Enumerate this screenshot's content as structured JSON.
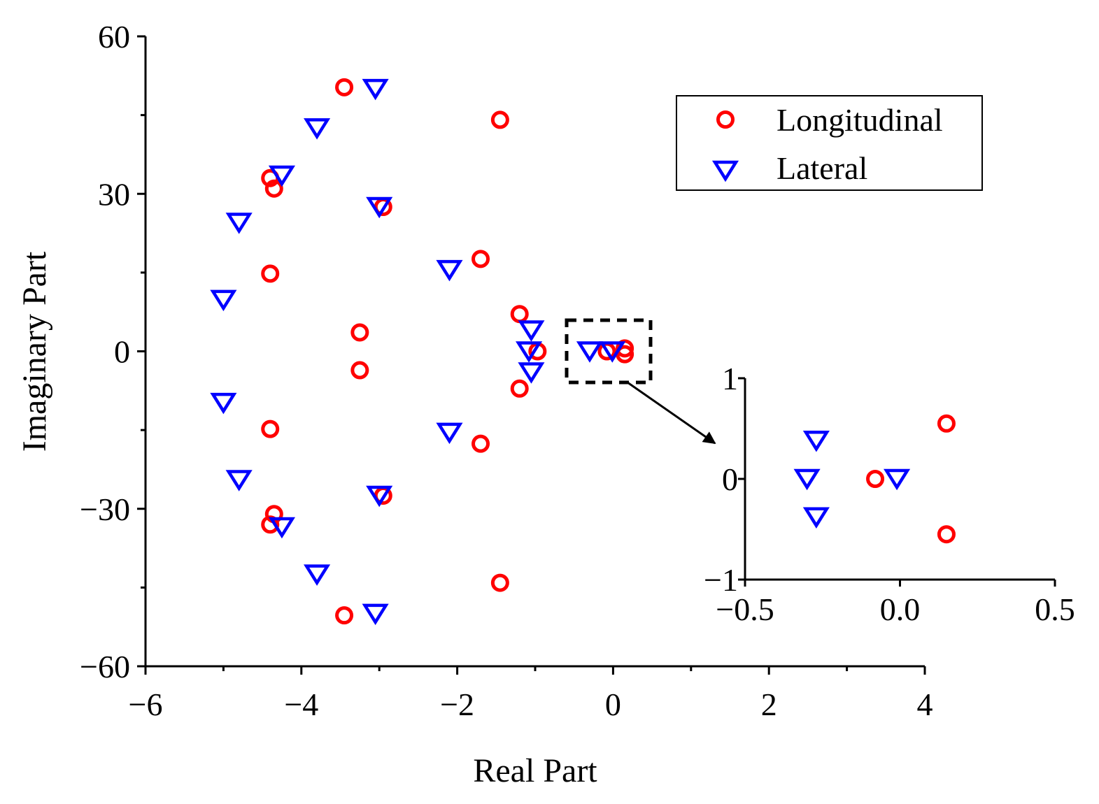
{
  "chart_data": {
    "type": "scatter",
    "xlabel": "Real Part",
    "ylabel": "Imaginary Part",
    "xlim": [
      -6,
      4
    ],
    "ylim": [
      -60,
      60
    ],
    "x_ticks": [
      -6,
      -4,
      -2,
      0,
      2,
      4
    ],
    "x_tick_labels": [
      "−6",
      "−4",
      "−2",
      "0",
      "2",
      "4"
    ],
    "y_ticks": [
      -60,
      -30,
      0,
      30,
      60
    ],
    "y_tick_labels": [
      "−60",
      "−30",
      "0",
      "30",
      "60"
    ],
    "legend": {
      "placement": "top-right",
      "entries": [
        "Longitudinal",
        "Lateral"
      ]
    },
    "colors": {
      "Longitudinal": "#ff0000",
      "Lateral": "#0000ff"
    },
    "series": [
      {
        "name": "Longitudinal",
        "marker": "circle",
        "points": [
          [
            -3.45,
            50.3
          ],
          [
            -3.45,
            -50.3
          ],
          [
            -1.45,
            44.1
          ],
          [
            -1.45,
            -44.1
          ],
          [
            -4.4,
            33.0
          ],
          [
            -4.4,
            -33.0
          ],
          [
            -4.35,
            31.0
          ],
          [
            -4.35,
            -31.0
          ],
          [
            -2.95,
            27.5
          ],
          [
            -2.95,
            -27.5
          ],
          [
            -1.7,
            17.6
          ],
          [
            -1.7,
            -17.6
          ],
          [
            -4.4,
            14.8
          ],
          [
            -4.4,
            -14.8
          ],
          [
            -1.2,
            7.1
          ],
          [
            -1.2,
            -7.1
          ],
          [
            -3.25,
            3.6
          ],
          [
            -3.25,
            -3.6
          ],
          [
            -0.97,
            0.0
          ],
          [
            -0.08,
            0.0
          ],
          [
            0.15,
            0.55
          ],
          [
            0.15,
            -0.55
          ]
        ]
      },
      {
        "name": "Lateral",
        "marker": "triangle-down",
        "points": [
          [
            -3.05,
            50.0
          ],
          [
            -3.05,
            -50.0
          ],
          [
            -3.8,
            42.5
          ],
          [
            -3.8,
            -42.5
          ],
          [
            -4.25,
            33.5
          ],
          [
            -4.25,
            -33.5
          ],
          [
            -3.0,
            27.5
          ],
          [
            -3.0,
            -27.5
          ],
          [
            -4.8,
            24.5
          ],
          [
            -4.8,
            -24.5
          ],
          [
            -2.1,
            15.5
          ],
          [
            -2.1,
            -15.5
          ],
          [
            -5.0,
            9.8
          ],
          [
            -5.0,
            -9.8
          ],
          [
            -1.05,
            4.0
          ],
          [
            -1.05,
            -4.0
          ],
          [
            -1.08,
            0.0
          ],
          [
            -0.3,
            0.0
          ],
          [
            -0.01,
            0.0
          ],
          [
            -0.27,
            0.38
          ],
          [
            -0.27,
            -0.38
          ]
        ]
      }
    ],
    "inset": {
      "xlim": [
        -0.5,
        0.5
      ],
      "ylim": [
        -1,
        1
      ],
      "x_ticks": [
        -0.5,
        0.0,
        0.5
      ],
      "x_tick_labels": [
        "−0.5",
        "0.0",
        "0.5"
      ],
      "y_ticks": [
        -1,
        0,
        1
      ],
      "y_tick_labels": [
        "−1",
        "0",
        "1"
      ],
      "zoom_region": {
        "xlim": [
          -0.6,
          0.5
        ],
        "ylim": [
          -6,
          6
        ]
      }
    }
  }
}
